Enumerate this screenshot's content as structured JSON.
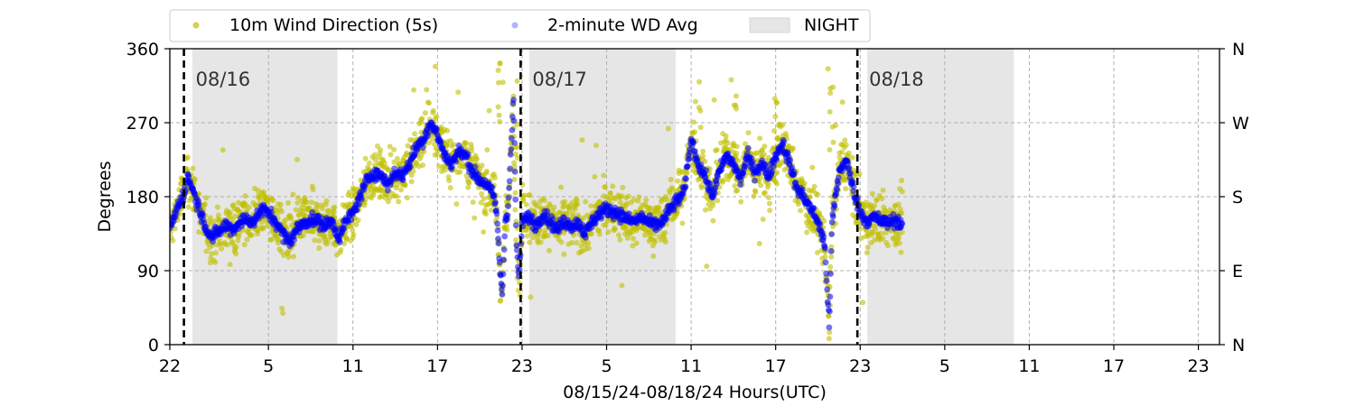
{
  "chart_data": {
    "type": "scatter",
    "title": "",
    "xlabel": "08/15/24-08/18/24  Hours(UTC)",
    "ylabel": "Degrees",
    "x_unit": "hours since 08/15 22:00 UTC",
    "xlim": [
      0,
      74.5
    ],
    "ylim": [
      0,
      360
    ],
    "x_tick_values": [
      0,
      7,
      13,
      19,
      25,
      31,
      37,
      43,
      49,
      55,
      61,
      67,
      73
    ],
    "x_tick_labels": [
      "22",
      "5",
      "11",
      "17",
      "23",
      "5",
      "11",
      "17",
      "23",
      "5",
      "11",
      "17",
      "23"
    ],
    "y_ticks": [
      0,
      90,
      180,
      270,
      360
    ],
    "y_tick_labels": [
      "0",
      "90",
      "180",
      "270",
      "360"
    ],
    "right_y_ticks": [
      0,
      90,
      180,
      270,
      360
    ],
    "right_y_tick_labels": [
      "N",
      "E",
      "S",
      "W",
      "N"
    ],
    "grid": true,
    "legend_placement": "top-left, above plot",
    "legend": [
      {
        "label": "10m Wind Direction (5s)",
        "marker": "dot",
        "color": "#bfbf00"
      },
      {
        "label": "2-minute WD Avg",
        "marker": "dot",
        "color": "#0000ff"
      },
      {
        "label": "NIGHT",
        "marker": "patch",
        "color": "#e6e6e6"
      }
    ],
    "night_spans": [
      [
        1.6,
        11.9
      ],
      [
        25.5,
        35.9
      ],
      [
        49.5,
        59.9
      ]
    ],
    "day_markers": [
      {
        "x": 1.0,
        "label": "08/16"
      },
      {
        "x": 24.9,
        "label": "08/17"
      },
      {
        "x": 48.8,
        "label": "08/18"
      }
    ],
    "series": [
      {
        "name": "2-minute WD Avg",
        "color": "#0000ff",
        "points": [
          [
            0,
            140
          ],
          [
            0.5,
            165
          ],
          [
            1,
            185
          ],
          [
            1.3,
            205
          ],
          [
            1.6,
            190
          ],
          [
            2,
            170
          ],
          [
            2.5,
            145
          ],
          [
            3,
            130
          ],
          [
            3.5,
            138
          ],
          [
            4,
            145
          ],
          [
            4.5,
            140
          ],
          [
            5,
            150
          ],
          [
            5.5,
            152
          ],
          [
            6,
            150
          ],
          [
            6.5,
            165
          ],
          [
            7,
            160
          ],
          [
            7.5,
            150
          ],
          [
            8,
            135
          ],
          [
            8.5,
            125
          ],
          [
            9,
            140
          ],
          [
            9.5,
            148
          ],
          [
            10,
            152
          ],
          [
            10.5,
            150
          ],
          [
            11,
            145
          ],
          [
            11.5,
            150
          ],
          [
            12,
            130
          ],
          [
            12.5,
            150
          ],
          [
            13,
            160
          ],
          [
            13.5,
            180
          ],
          [
            14,
            200
          ],
          [
            14.5,
            210
          ],
          [
            15,
            205
          ],
          [
            15.5,
            195
          ],
          [
            16,
            210
          ],
          [
            16.5,
            205
          ],
          [
            17,
            220
          ],
          [
            17.5,
            240
          ],
          [
            18,
            250
          ],
          [
            18.5,
            270
          ],
          [
            19,
            255
          ],
          [
            19.5,
            230
          ],
          [
            20,
            220
          ],
          [
            20.5,
            235
          ],
          [
            21,
            230
          ],
          [
            21.5,
            210
          ],
          [
            22,
            200
          ],
          [
            22.5,
            195
          ],
          [
            23,
            180
          ],
          [
            23.2,
            160
          ],
          [
            23.4,
            100
          ],
          [
            23.6,
            60
          ],
          [
            23.8,
            150
          ],
          [
            24,
            165
          ],
          [
            24.4,
            300
          ],
          [
            24.6,
            120
          ],
          [
            24.8,
            80
          ],
          [
            25,
            150
          ],
          [
            25.5,
            155
          ],
          [
            26,
            145
          ],
          [
            26.5,
            160
          ],
          [
            27,
            150
          ],
          [
            27.5,
            140
          ],
          [
            28,
            150
          ],
          [
            28.5,
            145
          ],
          [
            29,
            148
          ],
          [
            29.5,
            135
          ],
          [
            30,
            150
          ],
          [
            30.5,
            160
          ],
          [
            31,
            165
          ],
          [
            31.5,
            162
          ],
          [
            32,
            158
          ],
          [
            32.5,
            152
          ],
          [
            33,
            150
          ],
          [
            33.5,
            155
          ],
          [
            34,
            148
          ],
          [
            34.5,
            145
          ],
          [
            35,
            150
          ],
          [
            35.5,
            165
          ],
          [
            36,
            175
          ],
          [
            36.5,
            185
          ],
          [
            37,
            250
          ],
          [
            37.5,
            220
          ],
          [
            38,
            205
          ],
          [
            38.5,
            180
          ],
          [
            39,
            210
          ],
          [
            39.5,
            230
          ],
          [
            40,
            220
          ],
          [
            40.5,
            200
          ],
          [
            41,
            230
          ],
          [
            41.5,
            210
          ],
          [
            42,
            220
          ],
          [
            42.5,
            205
          ],
          [
            43,
            230
          ],
          [
            43.5,
            245
          ],
          [
            44,
            220
          ],
          [
            44.5,
            190
          ],
          [
            45,
            180
          ],
          [
            45.5,
            165
          ],
          [
            46,
            150
          ],
          [
            46.5,
            120
          ],
          [
            46.8,
            20
          ],
          [
            47,
            150
          ],
          [
            47.5,
            210
          ],
          [
            48,
            225
          ],
          [
            48.5,
            190
          ],
          [
            49,
            160
          ],
          [
            49.5,
            150
          ],
          [
            50,
            155
          ],
          [
            50.5,
            150
          ],
          [
            51,
            148
          ],
          [
            51.5,
            152
          ],
          [
            52,
            145
          ]
        ]
      },
      {
        "name": "10m Wind Direction (5s)",
        "color": "#bfbf00",
        "spread": 28
      }
    ]
  }
}
